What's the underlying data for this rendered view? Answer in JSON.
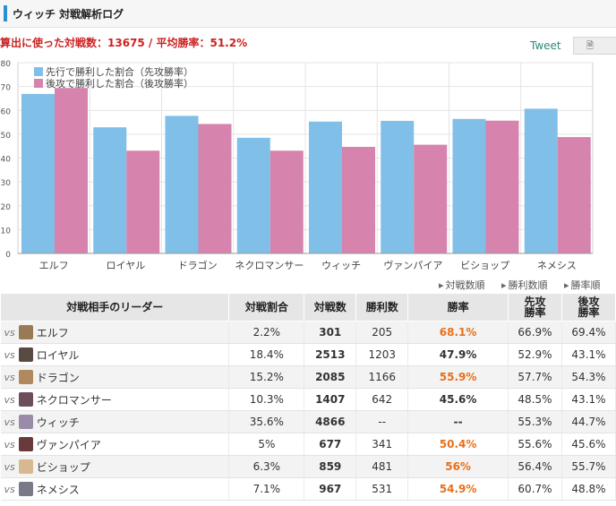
{
  "header": {
    "title": "ウィッチ 対戦解析ログ"
  },
  "summary": "算出に使った対戦数：13675 / 平均勝率：51.2%",
  "tweet": "Tweet",
  "tweet_box_icon": "page-icon",
  "colors": {
    "first": "#7fbfe8",
    "second": "#d683ad",
    "winrate": "#e8701a"
  },
  "chart_data": {
    "type": "bar",
    "categories": [
      "エルフ",
      "ロイヤル",
      "ドラゴン",
      "ネクロマンサー",
      "ウィッチ",
      "ヴァンパイア",
      "ビショップ",
      "ネメシス"
    ],
    "series": [
      {
        "name": "先行で勝利した割合（先攻勝率）",
        "values": [
          66.9,
          52.9,
          57.7,
          48.5,
          55.3,
          55.6,
          56.4,
          60.7
        ]
      },
      {
        "name": "後攻で勝利した割合（後攻勝率）",
        "values": [
          69.4,
          43.1,
          54.3,
          43.1,
          44.7,
          45.6,
          55.7,
          48.8
        ]
      }
    ],
    "yticks": [
      0,
      10,
      20,
      30,
      40,
      50,
      60,
      70,
      80
    ],
    "ylim": [
      0,
      80
    ],
    "grid": true,
    "legend": "top-left"
  },
  "sort_links": [
    "対戦数順",
    "勝利数順",
    "勝率順"
  ],
  "table": {
    "headers": [
      "対戦相手のリーダー",
      "対戦割合",
      "対戦数",
      "勝利数",
      "勝率",
      "先攻勝率",
      "後攻勝率"
    ],
    "vs": "vs",
    "rows": [
      {
        "leader": "エルフ",
        "ratio": "2.2%",
        "count": "301",
        "wins": "205",
        "rate": "68.1%",
        "first": "66.9%",
        "second": "69.4%",
        "hl": true,
        "icon": "#9a7a55"
      },
      {
        "leader": "ロイヤル",
        "ratio": "18.4%",
        "count": "2513",
        "wins": "1203",
        "rate": "47.9%",
        "first": "52.9%",
        "second": "43.1%",
        "hl": false,
        "icon": "#5a4a44"
      },
      {
        "leader": "ドラゴン",
        "ratio": "15.2%",
        "count": "2085",
        "wins": "1166",
        "rate": "55.9%",
        "first": "57.7%",
        "second": "54.3%",
        "hl": true,
        "icon": "#b08a5e"
      },
      {
        "leader": "ネクロマンサー",
        "ratio": "10.3%",
        "count": "1407",
        "wins": "642",
        "rate": "45.6%",
        "first": "48.5%",
        "second": "43.1%",
        "hl": false,
        "icon": "#6b4e5a"
      },
      {
        "leader": "ウィッチ",
        "ratio": "35.6%",
        "count": "4866",
        "wins": "--",
        "rate": "--",
        "first": "55.3%",
        "second": "44.7%",
        "hl": false,
        "icon": "#9a8ca8"
      },
      {
        "leader": "ヴァンパイア",
        "ratio": "5%",
        "count": "677",
        "wins": "341",
        "rate": "50.4%",
        "first": "55.6%",
        "second": "45.6%",
        "hl": true,
        "icon": "#6a3a3a"
      },
      {
        "leader": "ビショップ",
        "ratio": "6.3%",
        "count": "859",
        "wins": "481",
        "rate": "56%",
        "first": "56.4%",
        "second": "55.7%",
        "hl": true,
        "icon": "#d8b890"
      },
      {
        "leader": "ネメシス",
        "ratio": "7.1%",
        "count": "967",
        "wins": "531",
        "rate": "54.9%",
        "first": "60.7%",
        "second": "48.8%",
        "hl": true,
        "icon": "#7a7a86"
      }
    ]
  }
}
